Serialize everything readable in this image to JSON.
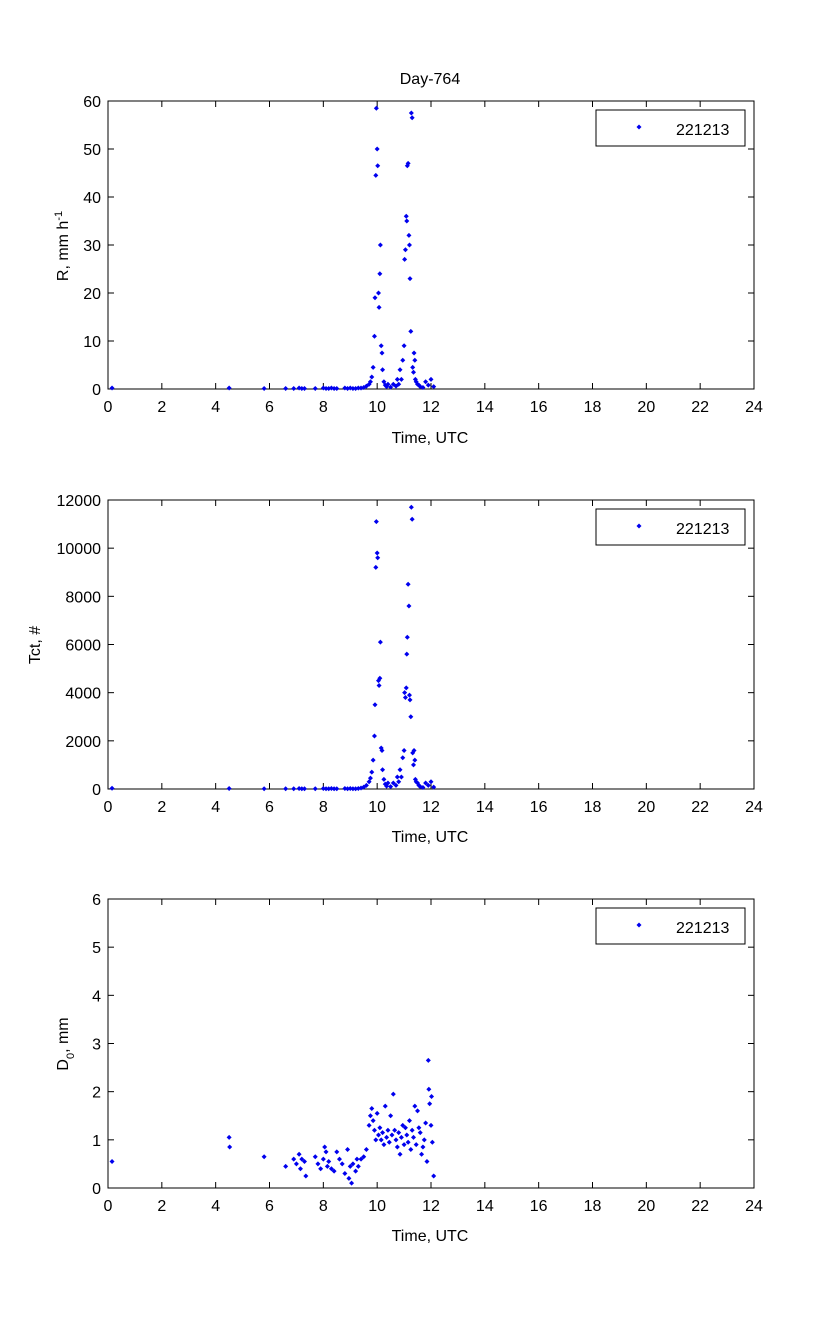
{
  "figure": {
    "title": "Day-764",
    "marker_color": "#0000ee",
    "axis_color": "#000000",
    "background": "#ffffff"
  },
  "chart_data": [
    {
      "type": "scatter",
      "title": "Day-764",
      "xlabel": "Time, UTC",
      "ylabel": "R, mm h",
      "ylabel_sup": "-1",
      "xlim": [
        0,
        24
      ],
      "ylim": [
        0,
        60
      ],
      "xticks": [
        0,
        2,
        4,
        6,
        8,
        10,
        12,
        14,
        16,
        18,
        20,
        22,
        24
      ],
      "yticks": [
        0,
        10,
        20,
        30,
        40,
        50,
        60
      ],
      "legend": {
        "position": "top-right",
        "entries": [
          "221213"
        ]
      },
      "series": [
        {
          "name": "221213",
          "x": [
            0.15,
            4.5,
            5.8,
            6.6,
            6.9,
            7.1,
            7.2,
            7.3,
            7.7,
            8.0,
            8.1,
            8.2,
            8.3,
            8.4,
            8.5,
            8.8,
            8.9,
            9.0,
            9.1,
            9.2,
            9.3,
            9.4,
            9.5,
            9.6,
            9.7,
            9.75,
            9.8,
            9.85,
            9.9,
            9.92,
            9.95,
            9.97,
            10.0,
            10.02,
            10.05,
            10.07,
            10.1,
            10.12,
            10.15,
            10.18,
            10.2,
            10.25,
            10.3,
            10.35,
            10.4,
            10.5,
            10.6,
            10.7,
            10.75,
            10.8,
            10.85,
            10.9,
            10.95,
            11.0,
            11.02,
            11.05,
            11.08,
            11.1,
            11.12,
            11.15,
            11.18,
            11.2,
            11.22,
            11.25,
            11.27,
            11.3,
            11.32,
            11.35,
            11.37,
            11.4,
            11.42,
            11.45,
            11.5,
            11.55,
            11.6,
            11.7,
            11.8,
            11.9,
            12.0,
            12.1
          ],
          "y": [
            0.2,
            0.2,
            0.1,
            0.1,
            0.1,
            0.2,
            0.1,
            0.1,
            0.1,
            0.2,
            0.1,
            0.1,
            0.2,
            0.1,
            0.1,
            0.2,
            0.1,
            0.2,
            0.1,
            0.1,
            0.2,
            0.2,
            0.3,
            0.6,
            1.0,
            1.5,
            2.5,
            4.5,
            11.0,
            19.0,
            44.5,
            58.5,
            50.0,
            46.5,
            20.0,
            17.0,
            24.0,
            30.0,
            9.0,
            7.5,
            4.0,
            1.5,
            0.8,
            0.5,
            1.0,
            0.4,
            1.0,
            0.6,
            2.0,
            1.0,
            4.0,
            2.0,
            6.0,
            9.0,
            27.0,
            29.0,
            36.0,
            35.0,
            46.5,
            47.0,
            32.0,
            30.0,
            23.0,
            12.0,
            57.5,
            56.5,
            4.5,
            3.5,
            7.5,
            6.0,
            2.0,
            1.5,
            1.0,
            0.8,
            0.5,
            0.3,
            1.5,
            0.8,
            2.0,
            0.5
          ]
        }
      ]
    },
    {
      "type": "scatter",
      "xlabel": "Time, UTC",
      "ylabel": "Tct, #",
      "xlim": [
        0,
        24
      ],
      "ylim": [
        0,
        12000
      ],
      "xticks": [
        0,
        2,
        4,
        6,
        8,
        10,
        12,
        14,
        16,
        18,
        20,
        22,
        24
      ],
      "yticks": [
        0,
        2000,
        4000,
        6000,
        8000,
        10000,
        12000
      ],
      "legend": {
        "position": "top-right",
        "entries": [
          "221213"
        ]
      },
      "series": [
        {
          "name": "221213",
          "x": [
            0.15,
            4.5,
            5.8,
            6.6,
            6.9,
            7.1,
            7.2,
            7.3,
            7.7,
            8.0,
            8.1,
            8.2,
            8.3,
            8.4,
            8.5,
            8.8,
            8.9,
            9.0,
            9.1,
            9.2,
            9.3,
            9.4,
            9.5,
            9.6,
            9.7,
            9.75,
            9.8,
            9.85,
            9.9,
            9.92,
            9.95,
            9.97,
            10.0,
            10.02,
            10.05,
            10.07,
            10.1,
            10.12,
            10.15,
            10.18,
            10.2,
            10.25,
            10.3,
            10.35,
            10.4,
            10.5,
            10.6,
            10.7,
            10.75,
            10.8,
            10.85,
            10.9,
            10.95,
            11.0,
            11.02,
            11.05,
            11.08,
            11.1,
            11.12,
            11.15,
            11.18,
            11.2,
            11.22,
            11.25,
            11.27,
            11.3,
            11.32,
            11.35,
            11.37,
            11.4,
            11.42,
            11.45,
            11.5,
            11.55,
            11.6,
            11.7,
            11.8,
            11.9,
            12.0,
            12.1
          ],
          "y": [
            30,
            20,
            10,
            10,
            10,
            20,
            10,
            10,
            10,
            20,
            10,
            10,
            20,
            10,
            10,
            20,
            10,
            20,
            10,
            10,
            20,
            40,
            80,
            150,
            300,
            450,
            700,
            1200,
            2200,
            3500,
            9200,
            11100,
            9800,
            9600,
            4500,
            4300,
            4600,
            6100,
            1700,
            1600,
            800,
            400,
            200,
            120,
            250,
            100,
            250,
            150,
            500,
            300,
            800,
            500,
            1300,
            1600,
            4000,
            3800,
            4200,
            5600,
            6300,
            8500,
            7600,
            3900,
            3700,
            3000,
            11700,
            11200,
            1500,
            1000,
            1600,
            1200,
            400,
            300,
            250,
            150,
            100,
            60,
            250,
            150,
            300,
            80
          ]
        }
      ]
    },
    {
      "type": "scatter",
      "xlabel": "Time, UTC",
      "ylabel": "D",
      "ylabel_sub": "0",
      "ylabel_suffix": ", mm",
      "xlim": [
        0,
        24
      ],
      "ylim": [
        0,
        6
      ],
      "xticks": [
        0,
        2,
        4,
        6,
        8,
        10,
        12,
        14,
        16,
        18,
        20,
        22,
        24
      ],
      "yticks": [
        0,
        1,
        2,
        3,
        4,
        5,
        6
      ],
      "legend": {
        "position": "top-right",
        "entries": [
          "221213"
        ]
      },
      "series": [
        {
          "name": "221213",
          "x": [
            0.15,
            4.5,
            4.52,
            5.8,
            6.6,
            6.9,
            7.0,
            7.1,
            7.15,
            7.2,
            7.3,
            7.35,
            7.7,
            7.8,
            7.9,
            8.0,
            8.05,
            8.1,
            8.15,
            8.2,
            8.3,
            8.4,
            8.5,
            8.6,
            8.7,
            8.8,
            8.9,
            8.95,
            9.0,
            9.05,
            9.1,
            9.2,
            9.25,
            9.3,
            9.4,
            9.5,
            9.6,
            9.7,
            9.75,
            9.8,
            9.85,
            9.9,
            9.95,
            10.0,
            10.05,
            10.1,
            10.15,
            10.2,
            10.25,
            10.3,
            10.35,
            10.4,
            10.45,
            10.5,
            10.55,
            10.6,
            10.65,
            10.7,
            10.75,
            10.8,
            10.85,
            10.9,
            10.95,
            11.0,
            11.05,
            11.1,
            11.15,
            11.2,
            11.25,
            11.3,
            11.35,
            11.4,
            11.45,
            11.5,
            11.55,
            11.6,
            11.65,
            11.7,
            11.75,
            11.8,
            11.85,
            11.9,
            11.92,
            11.95,
            12.0,
            12.02,
            12.05,
            12.1
          ],
          "y": [
            0.55,
            1.05,
            0.85,
            0.65,
            0.45,
            0.6,
            0.5,
            0.7,
            0.4,
            0.6,
            0.55,
            0.25,
            0.65,
            0.5,
            0.4,
            0.6,
            0.85,
            0.75,
            0.45,
            0.55,
            0.4,
            0.35,
            0.75,
            0.6,
            0.5,
            0.3,
            0.8,
            0.2,
            0.45,
            0.1,
            0.5,
            0.35,
            0.6,
            0.45,
            0.6,
            0.65,
            0.8,
            1.3,
            1.5,
            1.65,
            1.4,
            1.2,
            1.0,
            1.55,
            1.1,
            1.25,
            1.0,
            1.15,
            0.9,
            1.7,
            1.05,
            1.2,
            0.95,
            1.5,
            1.1,
            1.95,
            1.2,
            1.0,
            0.85,
            1.15,
            0.7,
            1.05,
            1.3,
            0.9,
            1.25,
            1.1,
            0.95,
            1.4,
            0.8,
            1.2,
            1.05,
            1.7,
            0.9,
            1.6,
            1.25,
            1.15,
            0.7,
            0.85,
            1.0,
            1.35,
            0.55,
            2.65,
            2.05,
            1.75,
            1.3,
            1.9,
            0.95,
            0.25
          ]
        }
      ]
    }
  ]
}
